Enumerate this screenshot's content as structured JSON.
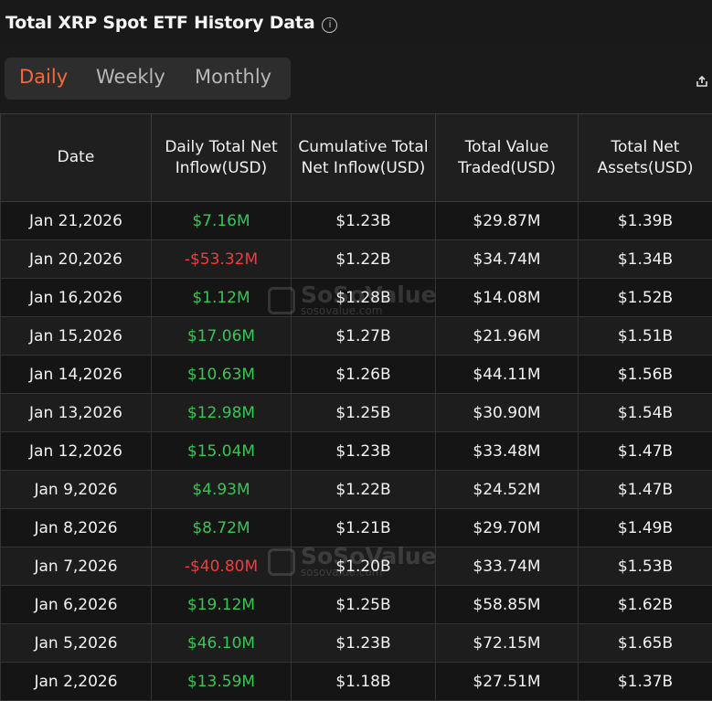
{
  "title": "Total XRP Spot ETF History Data",
  "info_icon": "info-icon",
  "tabs": [
    {
      "label": "Daily",
      "active": true
    },
    {
      "label": "Weekly",
      "active": false
    },
    {
      "label": "Monthly",
      "active": false
    }
  ],
  "export_icon": "export-icon",
  "columns": [
    "Date",
    "Daily Total Net Inflow(USD)",
    "Cumulative Total Net Inflow(USD)",
    "Total Value Traded(USD)",
    "Total Net Assets(USD)"
  ],
  "rows": [
    {
      "date": "Jan 21,2026",
      "inflow": "$7.16M",
      "cumulative": "$1.23B",
      "traded": "$29.87M",
      "assets": "$1.39B"
    },
    {
      "date": "Jan 20,2026",
      "inflow": "-$53.32M",
      "cumulative": "$1.22B",
      "traded": "$34.74M",
      "assets": "$1.34B"
    },
    {
      "date": "Jan 16,2026",
      "inflow": "$1.12M",
      "cumulative": "$1.28B",
      "traded": "$14.08M",
      "assets": "$1.52B"
    },
    {
      "date": "Jan 15,2026",
      "inflow": "$17.06M",
      "cumulative": "$1.27B",
      "traded": "$21.96M",
      "assets": "$1.51B"
    },
    {
      "date": "Jan 14,2026",
      "inflow": "$10.63M",
      "cumulative": "$1.26B",
      "traded": "$44.11M",
      "assets": "$1.56B"
    },
    {
      "date": "Jan 13,2026",
      "inflow": "$12.98M",
      "cumulative": "$1.25B",
      "traded": "$30.90M",
      "assets": "$1.54B"
    },
    {
      "date": "Jan 12,2026",
      "inflow": "$15.04M",
      "cumulative": "$1.23B",
      "traded": "$33.48M",
      "assets": "$1.47B"
    },
    {
      "date": "Jan 9,2026",
      "inflow": "$4.93M",
      "cumulative": "$1.22B",
      "traded": "$24.52M",
      "assets": "$1.47B"
    },
    {
      "date": "Jan 8,2026",
      "inflow": "$8.72M",
      "cumulative": "$1.21B",
      "traded": "$29.70M",
      "assets": "$1.49B"
    },
    {
      "date": "Jan 7,2026",
      "inflow": "-$40.80M",
      "cumulative": "$1.20B",
      "traded": "$33.74M",
      "assets": "$1.53B"
    },
    {
      "date": "Jan 6,2026",
      "inflow": "$19.12M",
      "cumulative": "$1.25B",
      "traded": "$58.85M",
      "assets": "$1.62B"
    },
    {
      "date": "Jan 5,2026",
      "inflow": "$46.10M",
      "cumulative": "$1.23B",
      "traded": "$72.15M",
      "assets": "$1.65B"
    },
    {
      "date": "Jan 2,2026",
      "inflow": "$13.59M",
      "cumulative": "$1.18B",
      "traded": "$27.51M",
      "assets": "$1.37B"
    }
  ],
  "watermark": {
    "brand": "SoSoValue",
    "domain": "sosovalue.com"
  },
  "colors": {
    "accent": "#f26a3f",
    "positive": "#36c752",
    "negative": "#ef3d3d",
    "background": "#1a1a1a"
  }
}
